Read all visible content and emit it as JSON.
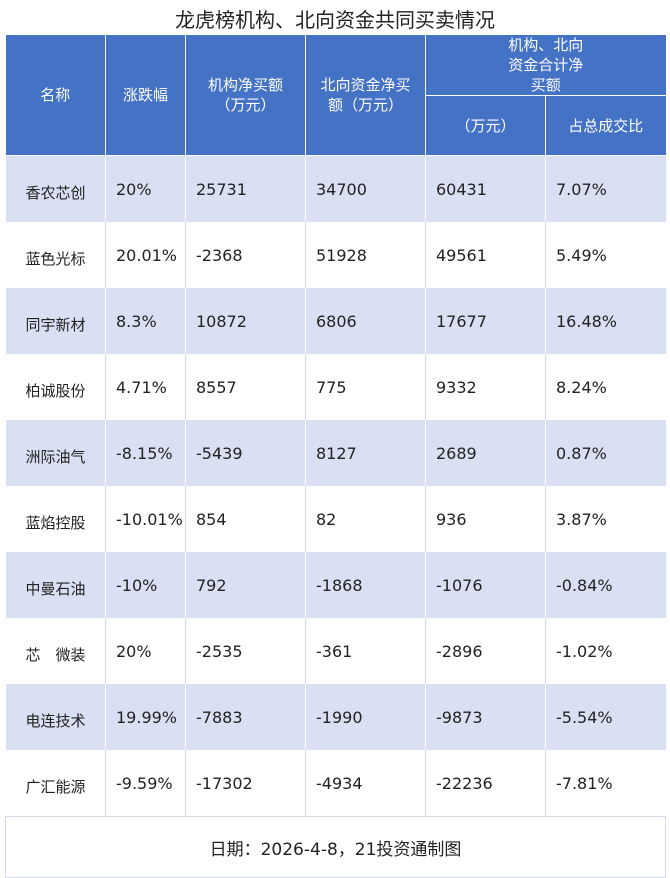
{
  "title": "龙虎榜机构、北向资金共同买卖情况",
  "headers": {
    "name": "名称",
    "change": "涨跌幅",
    "inst_net": "机构净买额（万元）",
    "north_net": "北向资金净买额（万元）",
    "combined_group": "机构、北向资金合计净买额",
    "combined_unit": "（万元）",
    "ratio": "占总成交比"
  },
  "rows": [
    {
      "name": "香农芯创",
      "change": "20%",
      "inst_net": "25731",
      "north_net": "34700",
      "combined": "60431",
      "ratio": "7.07%"
    },
    {
      "name": "蓝色光标",
      "change": "20.01%",
      "inst_net": "-2368",
      "north_net": "51928",
      "combined": "49561",
      "ratio": "5.49%"
    },
    {
      "name": "同宇新材",
      "change": "8.3%",
      "inst_net": "10872",
      "north_net": "6806",
      "combined": "17677",
      "ratio": "16.48%"
    },
    {
      "name": "柏诚股份",
      "change": "4.71%",
      "inst_net": "8557",
      "north_net": "775",
      "combined": "9332",
      "ratio": "8.24%"
    },
    {
      "name": "洲际油气",
      "change": "-8.15%",
      "inst_net": "-5439",
      "north_net": "8127",
      "combined": "2689",
      "ratio": "0.87%"
    },
    {
      "name": "蓝焰控股",
      "change": "-10.01%",
      "inst_net": "854",
      "north_net": "82",
      "combined": "936",
      "ratio": "3.87%"
    },
    {
      "name": "中曼石油",
      "change": "-10%",
      "inst_net": "792",
      "north_net": "-1868",
      "combined": "-1076",
      "ratio": "-0.84%"
    },
    {
      "name": "芯　微装",
      "change": "20%",
      "inst_net": "-2535",
      "north_net": "-361",
      "combined": "-2896",
      "ratio": "-1.02%"
    },
    {
      "name": "电连技术",
      "change": "19.99%",
      "inst_net": "-7883",
      "north_net": "-1990",
      "combined": "-9873",
      "ratio": "-5.54%"
    },
    {
      "name": "广汇能源",
      "change": "-9.59%",
      "inst_net": "-17302",
      "north_net": "-4934",
      "combined": "-22236",
      "ratio": "-7.81%"
    }
  ],
  "footer": "日期：2026-4-8，21投资通制图"
}
